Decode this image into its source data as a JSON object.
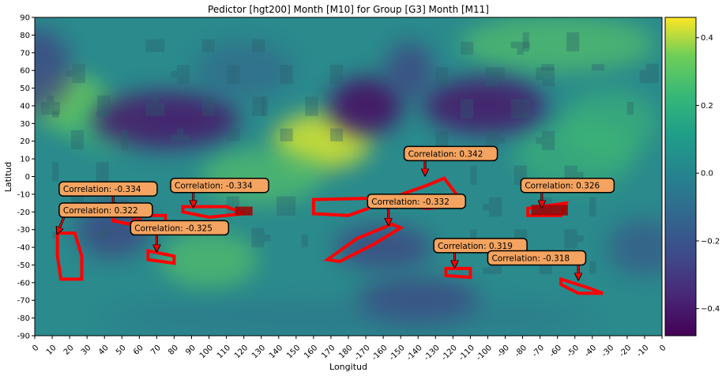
{
  "chart_data": {
    "type": "heatmap",
    "title": "Pedictor [hgt200] Month [M10] for Group [G3] Month [M11]",
    "xlabel": "Longitud",
    "ylabel": "Latitud",
    "x_tick_labels": [
      "0",
      "10",
      "20",
      "30",
      "40",
      "50",
      "60",
      "70",
      "80",
      "90",
      "100",
      "110",
      "120",
      "130",
      "140",
      "150",
      "160",
      "170",
      "180",
      "-170",
      "-160",
      "-150",
      "-140",
      "-130",
      "-120",
      "-110",
      "-100",
      "-90",
      "-80",
      "-70",
      "-60",
      "-50",
      "-40",
      "-30",
      "-20",
      "-10",
      "0"
    ],
    "y_tick_labels": [
      "90",
      "80",
      "70",
      "60",
      "50",
      "40",
      "30",
      "20",
      "10",
      "0",
      "-10",
      "-20",
      "-30",
      "-40",
      "-50",
      "-60",
      "-70",
      "-80",
      "-90"
    ],
    "xlim": [
      0,
      360
    ],
    "ylim": [
      -90,
      90
    ],
    "colorbar": {
      "colormap": "viridis",
      "range": [
        -0.48,
        0.46
      ],
      "tick_values": [
        0.4,
        0.2,
        0.0,
        -0.2,
        -0.4
      ],
      "tick_labels": [
        "0.4",
        "0.2",
        "0.0",
        "−0.2",
        "−0.4"
      ]
    },
    "annotations": [
      {
        "text": "Correlation: -0.334",
        "lon": 45,
        "lat": -18,
        "text_lon": 14,
        "text_lat": -7
      },
      {
        "text": "Correlation: 0.322",
        "lon": 13,
        "lat": -32,
        "text_lon": 14,
        "text_lat": -19
      },
      {
        "text": "Correlation: -0.334",
        "lon": 91,
        "lat": -17,
        "text_lon": 78,
        "text_lat": -5
      },
      {
        "text": "Correlation: -0.325",
        "lon": 70,
        "lat": -42,
        "text_lon": 55,
        "text_lat": -29
      },
      {
        "text": "Correlation: 0.342",
        "lon": 224,
        "lat": 1,
        "text_lon": 212,
        "text_lat": 13
      },
      {
        "text": "Correlation: -0.332",
        "lon": 203,
        "lat": -27,
        "text_lon": 191,
        "text_lat": -14
      },
      {
        "text": "Correlation: 0.326",
        "lon": 291,
        "lat": -17,
        "text_lon": 279,
        "text_lat": -5
      },
      {
        "text": "Correlation: 0.319",
        "lon": 241,
        "lat": -51,
        "text_lon": 229,
        "text_lat": -39
      },
      {
        "text": "Correlation: -0.318",
        "lon": 312,
        "lat": -58,
        "text_lon": 260,
        "text_lat": -46
      }
    ],
    "highlight_color": "#ff0000"
  }
}
